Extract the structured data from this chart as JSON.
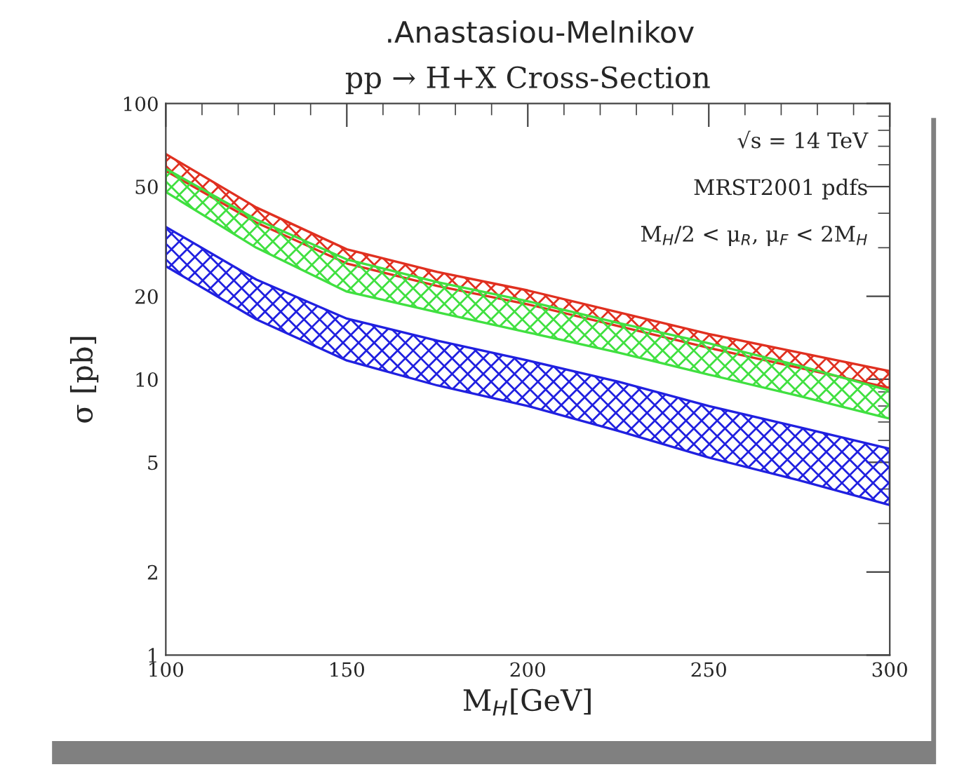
{
  "chart_data": {
    "type": "area",
    "title": ".Anastasiou-Melnikov",
    "subtitle": "pp → H+X Cross-Section",
    "xlabel": "M$_{H}$[GeV]",
    "ylabel": "σ [pb]",
    "x": [
      100,
      125,
      150,
      175,
      200,
      225,
      250,
      275,
      300
    ],
    "series": [
      {
        "color": "#e03020",
        "values": [
          null,
          null,
          null,
          null,
          null,
          null,
          null,
          null,
          null
        ],
        "upper": [
          65.6,
          42,
          29.6,
          24.5,
          21,
          17.5,
          14.6,
          12.5,
          10.7
        ],
        "lower": [
          57,
          37,
          26.3,
          21.8,
          18.7,
          15.6,
          13.0,
          11.0,
          9.3
        ]
      },
      {
        "color": "#40e040",
        "values": [
          null,
          null,
          null,
          null,
          null,
          null,
          null,
          null,
          null
        ],
        "upper": [
          58,
          38,
          27.2,
          22.5,
          19.2,
          16,
          13.5,
          11.2,
          9.1
        ],
        "lower": [
          47.8,
          30,
          20.8,
          17.5,
          14.8,
          12.5,
          10.4,
          8.7,
          7.2
        ]
      },
      {
        "color": "#2020e0",
        "values": [
          null,
          null,
          null,
          null,
          null,
          null,
          null,
          null,
          null
        ],
        "upper": [
          35.7,
          23,
          16.6,
          13.8,
          11.7,
          9.8,
          8.0,
          6.7,
          5.6
        ],
        "lower": [
          25.7,
          16.5,
          11.7,
          9.5,
          8.0,
          6.5,
          5.2,
          4.3,
          3.5
        ]
      }
    ],
    "log": "y",
    "xlim": [
      100,
      300
    ],
    "ylim": [
      1,
      100
    ],
    "xticks": [
      100,
      150,
      200,
      250,
      300
    ],
    "yticks": [
      1,
      2,
      5,
      10,
      20,
      50,
      100
    ],
    "annotations": [
      "√s = 14 TeV",
      "MRST2001 pdfs",
      "M$_{H}$/2 < μ$_{R}$, μ$_{F}$ < 2M$_{H}$"
    ]
  }
}
